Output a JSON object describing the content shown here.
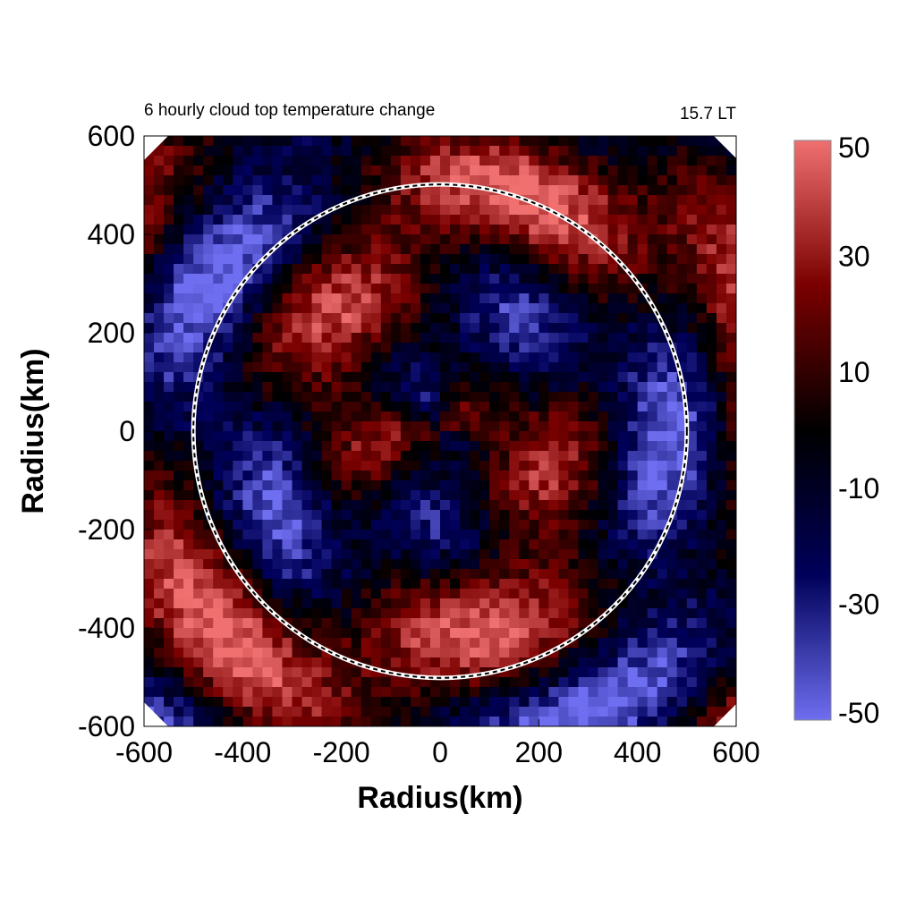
{
  "chart_data": {
    "type": "heatmap",
    "title": "6 hourly cloud top temperature change",
    "time_label": "15.7 LT",
    "xlabel": "Radius(km)",
    "ylabel": "Radius(km)",
    "xlim": [
      -600,
      600
    ],
    "ylim": [
      -600,
      600
    ],
    "x_ticks": [
      "-600",
      "-400",
      "-200",
      "0",
      "200",
      "400",
      "600"
    ],
    "y_ticks": [
      "600",
      "400",
      "200",
      "0",
      "-200",
      "-400",
      "-600"
    ],
    "domain_radius": 600,
    "reference_circle_radius": 500,
    "colorbar": {
      "min": -50,
      "max": 50,
      "ticks": [
        "50",
        "30",
        "10",
        "-10",
        "-30",
        "-50"
      ],
      "colors": {
        "low": "#6e6ef0",
        "mid_low": "#00005a",
        "zero": "#000000",
        "mid_high": "#7a0000",
        "high": "#f07070"
      }
    },
    "grid": false,
    "legend": "colorbar-right"
  }
}
